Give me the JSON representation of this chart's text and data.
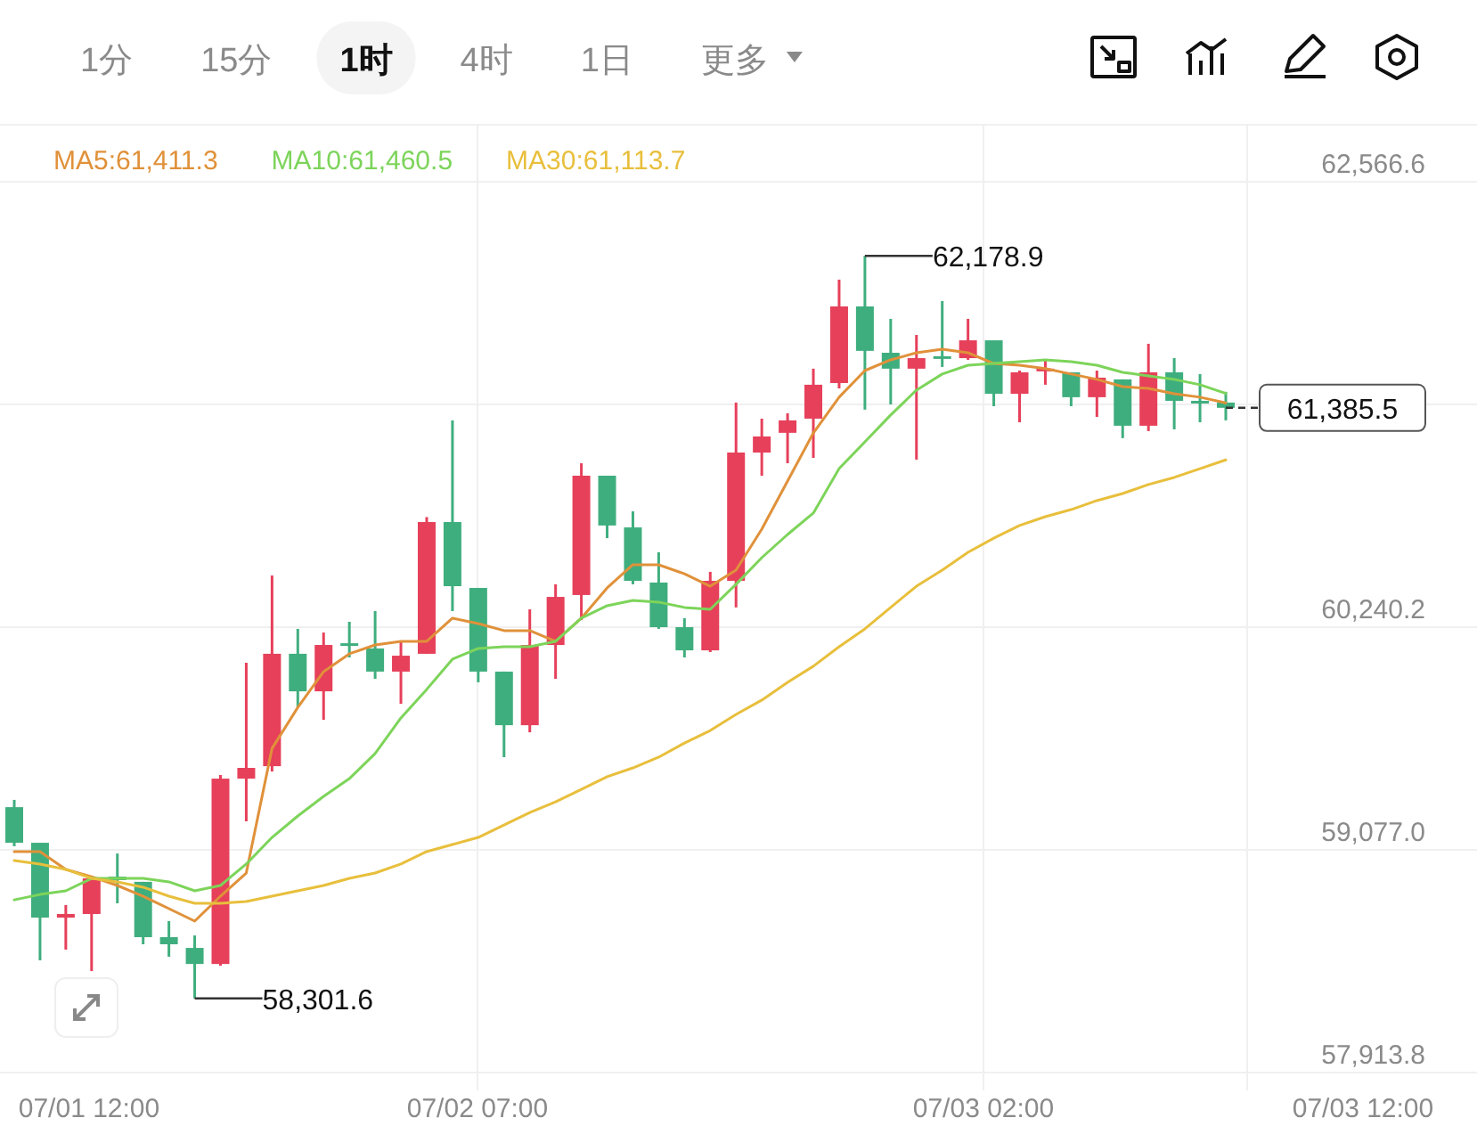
{
  "chart_data": {
    "type": "candlestick",
    "annotations": [
      "1分",
      "15分",
      "1时",
      "4时",
      "1日",
      "更多",
      "07/01 12:00",
      "07/02 07:00",
      "07/03 02:00",
      "07/03 12:00",
      "62,178.9",
      "58,301.6"
    ],
    "categories": [
      null,
      null,
      null,
      null,
      null,
      null,
      null,
      null,
      null,
      null,
      null,
      null,
      null,
      null,
      null,
      null,
      null,
      null,
      null,
      null,
      null,
      null,
      null,
      null,
      null,
      null,
      null,
      null,
      null,
      null,
      null,
      null,
      null,
      null,
      null,
      null,
      null,
      null,
      null,
      null,
      null,
      null,
      null,
      null,
      null,
      null,
      null,
      null
    ],
    "ylim": [
      57821,
      62864
    ],
    "yticks": [
      {
        "value": 57913.8,
        "label": "57,913.8"
      },
      {
        "value": 59077.0,
        "label": "59,077.0"
      },
      {
        "value": 60240.2,
        "label": "60,240.2"
      },
      {
        "value": 61403.4,
        "label": null
      },
      {
        "value": 62566.6,
        "label": "62,566.6"
      }
    ],
    "grid": true,
    "legend": "top",
    "ohlc": [
      [
        59300,
        59338,
        59096,
        59114
      ],
      [
        59114,
        59114,
        58500,
        58723
      ],
      [
        58723,
        58789,
        58556,
        58742
      ],
      [
        58742,
        58937,
        58444,
        58928
      ],
      [
        58937,
        59058,
        58798,
        58919
      ],
      [
        58910,
        58910,
        58584,
        58621
      ],
      [
        58621,
        58705,
        58519,
        58584
      ],
      [
        58565,
        58630,
        58301.6,
        58481
      ],
      [
        58481,
        59468,
        58472,
        59449
      ],
      [
        59449,
        60054,
        59226,
        59505
      ],
      [
        59514,
        60510,
        59486,
        60101
      ],
      [
        60101,
        60231,
        59821,
        59905
      ],
      [
        59905,
        60212,
        59756,
        60147
      ],
      [
        60156,
        60268,
        60082,
        60147
      ],
      [
        60129,
        60324,
        59970,
        60008
      ],
      [
        60008,
        60166,
        59840,
        60091
      ],
      [
        60101,
        60815,
        60101,
        60789
      ],
      [
        60789,
        61320,
        60324,
        60454
      ],
      [
        60445,
        60445,
        59952,
        60008
      ],
      [
        60008,
        60008,
        59561,
        59728
      ],
      [
        59728,
        60333,
        59691,
        60147
      ],
      [
        60147,
        60464,
        59970,
        60398
      ],
      [
        60408,
        61096,
        60277,
        61031
      ],
      [
        61031,
        61031,
        60705,
        60771
      ],
      [
        60761,
        60845,
        60464,
        60482
      ],
      [
        60473,
        60631,
        60231,
        60240
      ],
      [
        60240,
        60287,
        60082,
        60119
      ],
      [
        60119,
        60529,
        60110,
        60482
      ],
      [
        60482,
        61413,
        60343,
        61152
      ],
      [
        61152,
        61329,
        61031,
        61236
      ],
      [
        61255,
        61357,
        61096,
        61320
      ],
      [
        61329,
        61590,
        61124,
        61506
      ],
      [
        61515,
        62055,
        61487,
        61915
      ],
      [
        61915,
        62178.9,
        61376,
        61683
      ],
      [
        61673,
        61850,
        61403,
        61590
      ],
      [
        61590,
        61766,
        61115,
        61645
      ],
      [
        61655,
        61943,
        61599,
        61645
      ],
      [
        61645,
        61850,
        61636,
        61738
      ],
      [
        61738,
        61738,
        61394,
        61459
      ],
      [
        61459,
        61580,
        61310,
        61571
      ],
      [
        61580,
        61636,
        61506,
        61590
      ],
      [
        61571,
        61571,
        61394,
        61441
      ],
      [
        61441,
        61580,
        61338,
        61543
      ],
      [
        61534,
        61534,
        61227,
        61292
      ],
      [
        61292,
        61720,
        61264,
        61571
      ],
      [
        61571,
        61645,
        61273,
        61422
      ],
      [
        61422,
        61562,
        61310,
        61413
      ],
      [
        61413,
        61469,
        61320,
        61385.5
      ]
    ],
    "colors": [
      "#3fae7e",
      "#3fae7e",
      "#e6405a",
      "#e6405a",
      "#3fae7e",
      "#3fae7e",
      "#3fae7e",
      "#3fae7e",
      "#e6405a",
      "#e6405a",
      "#e6405a",
      "#3fae7e",
      "#e6405a",
      "#3fae7e",
      "#3fae7e",
      "#e6405a",
      "#e6405a",
      "#3fae7e",
      "#3fae7e",
      "#3fae7e",
      "#e6405a",
      "#e6405a",
      "#e6405a",
      "#3fae7e",
      "#3fae7e",
      "#3fae7e",
      "#3fae7e",
      "#e6405a",
      "#e6405a",
      "#e6405a",
      "#e6405a",
      "#e6405a",
      "#e6405a",
      "#3fae7e",
      "#3fae7e",
      "#e6405a",
      "#3fae7e",
      "#e6405a",
      "#3fae7e",
      "#e6405a",
      "#e6405a",
      "#3fae7e",
      "#e6405a",
      "#3fae7e",
      "#e6405a",
      "#3fae7e",
      "#3fae7e",
      "#3fae7e"
    ],
    "series": [
      {
        "type": "line",
        "name": "MA5:61,411.3",
        "color": "#e0913a",
        "values": [
          59068,
          59068,
          58975,
          58937,
          58891,
          58835,
          58770,
          58705,
          58835,
          58956,
          59607,
          59821,
          60008,
          60101,
          60147,
          60166,
          60166,
          60287,
          60259,
          60222,
          60222,
          60166,
          60287,
          60445,
          60566,
          60566,
          60519,
          60454,
          60538,
          60752,
          61003,
          61254,
          61441,
          61580,
          61636,
          61673,
          61692,
          61673,
          61617,
          61608,
          61590,
          61562,
          61534,
          61496,
          61487,
          61459,
          61441,
          61411.3
        ]
      },
      {
        "type": "line",
        "name": "MA10:61,460.5",
        "color": "#7dd45a",
        "values": [
          58816,
          58844,
          58863,
          58928,
          58928,
          58928,
          58910,
          58863,
          58891,
          59003,
          59142,
          59254,
          59356,
          59449,
          59580,
          59766,
          59915,
          60073,
          60129,
          60138,
          60138,
          60166,
          60287,
          60352,
          60380,
          60371,
          60343,
          60333,
          60464,
          60603,
          60724,
          60836,
          61068,
          61208,
          61348,
          61478,
          61562,
          61608,
          61617,
          61627,
          61636,
          61627,
          61608,
          61571,
          61552,
          61534,
          61506,
          61460.5
        ]
      },
      {
        "type": "line",
        "name": "MA30:61,113.7",
        "color": "#e8bf3c",
        "values": [
          59021,
          59003,
          58975,
          58928,
          58910,
          58882,
          58835,
          58798,
          58798,
          58807,
          58835,
          58863,
          58891,
          58928,
          58956,
          59003,
          59068,
          59105,
          59142,
          59207,
          59272,
          59328,
          59393,
          59459,
          59505,
          59561,
          59635,
          59700,
          59784,
          59859,
          59952,
          60036,
          60138,
          60231,
          60343,
          60454,
          60538,
          60631,
          60705,
          60771,
          60817,
          60854,
          60901,
          60938,
          60985,
          61022,
          61068,
          61113.7
        ]
      }
    ],
    "ref_lines": [
      {
        "axis": "y",
        "value": 61385.5,
        "label": "61,385.5",
        "line_style": "dashed"
      }
    ]
  }
}
